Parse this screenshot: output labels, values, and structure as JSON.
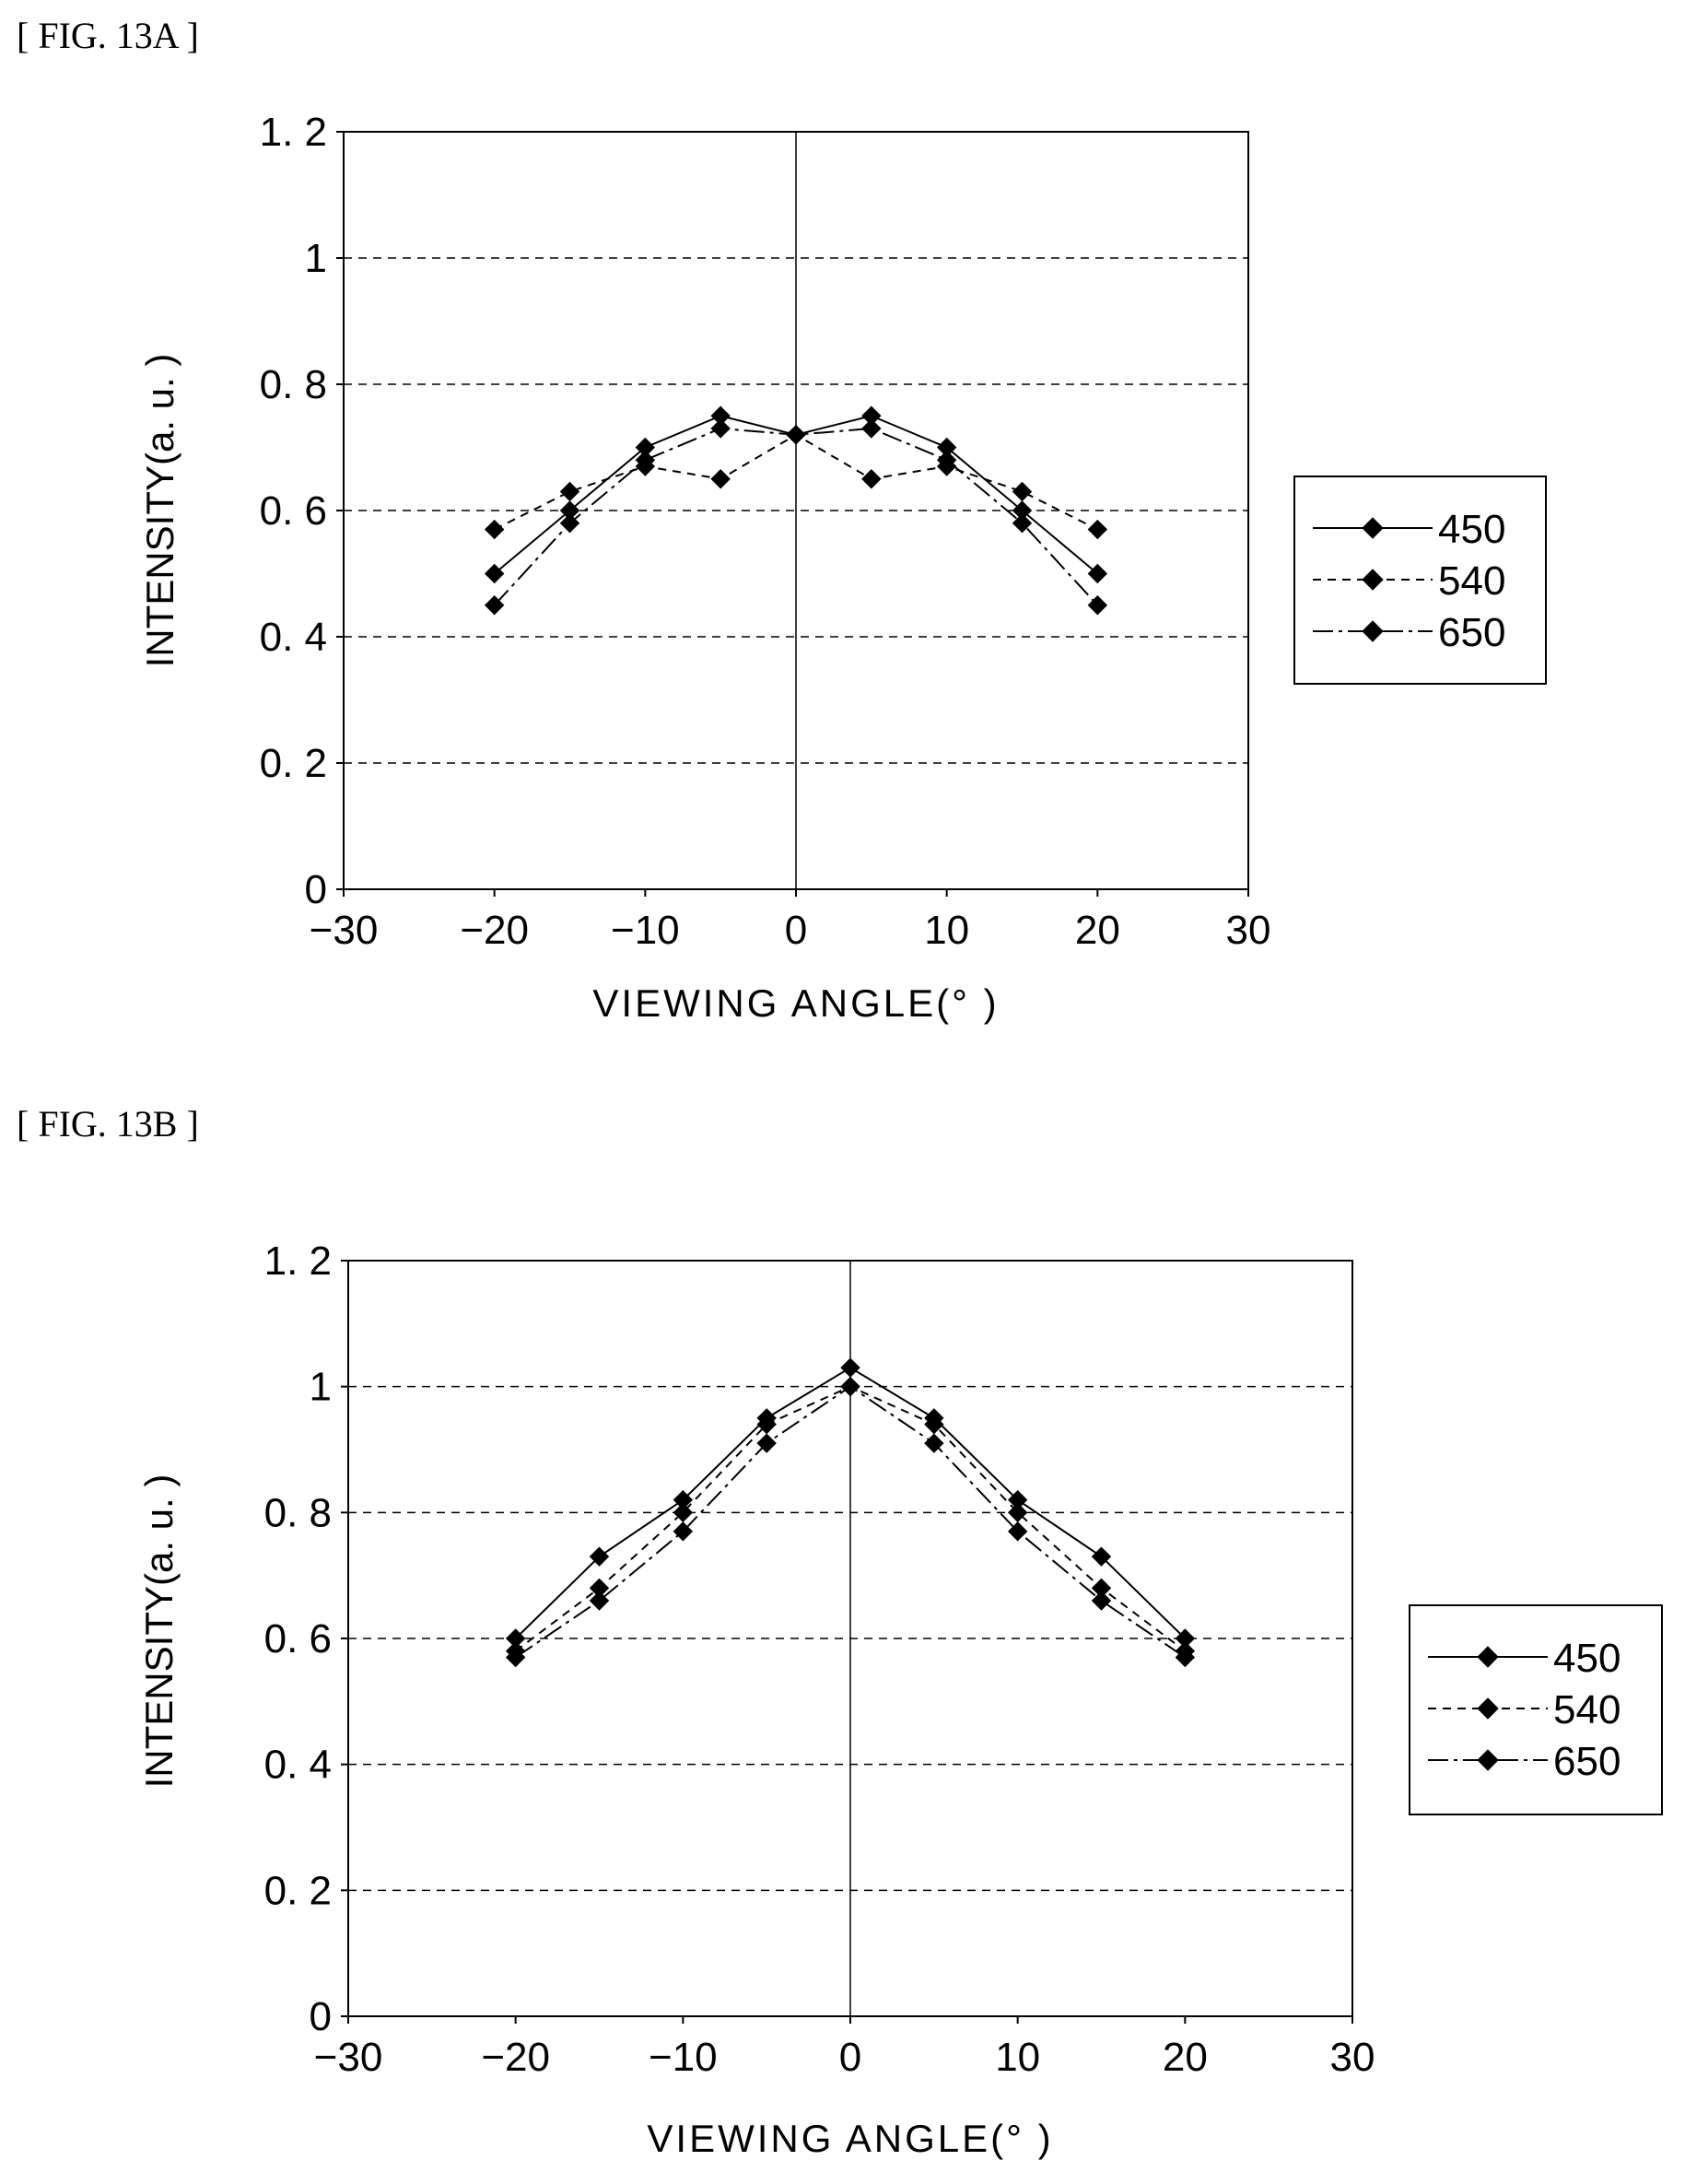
{
  "figures": [
    {
      "fig_label": "[ FIG. 13A ]",
      "chart_data": {
        "type": "line",
        "xlabel": "VIEWING ANGLE(° )",
        "ylabel": "INTENSITY(a. u. )",
        "xlim": [
          -30,
          30
        ],
        "ylim": [
          0,
          1.2
        ],
        "xticks": [
          "−30",
          "−20",
          "−10",
          "0",
          "10",
          "20",
          "30"
        ],
        "yticks": [
          "0",
          "0. 2",
          "0. 4",
          "0. 6",
          "0. 8",
          "1",
          "1. 2"
        ],
        "grid": "horizontal dashed",
        "legend_position": "right",
        "x": [
          -20,
          -15,
          -10,
          -5,
          0,
          5,
          10,
          15,
          20
        ],
        "series": [
          {
            "name": "450",
            "style": "solid",
            "values": [
              0.5,
              0.6,
              0.7,
              0.75,
              0.72,
              0.75,
              0.7,
              0.6,
              0.5
            ]
          },
          {
            "name": "540",
            "style": "dashed",
            "values": [
              0.57,
              0.63,
              0.67,
              0.65,
              0.72,
              0.65,
              0.67,
              0.63,
              0.57
            ]
          },
          {
            "name": "650",
            "style": "dashdot",
            "values": [
              0.45,
              0.58,
              0.68,
              0.73,
              0.72,
              0.73,
              0.68,
              0.58,
              0.45
            ]
          }
        ]
      }
    },
    {
      "fig_label": "[ FIG. 13B ]",
      "chart_data": {
        "type": "line",
        "xlabel": "VIEWING ANGLE(° )",
        "ylabel": "INTENSITY(a. u. )",
        "xlim": [
          -30,
          30
        ],
        "ylim": [
          0,
          1.2
        ],
        "xticks": [
          "−30",
          "−20",
          "−10",
          "0",
          "10",
          "20",
          "30"
        ],
        "yticks": [
          "0",
          "0. 2",
          "0. 4",
          "0. 6",
          "0. 8",
          "1",
          "1. 2"
        ],
        "grid": "horizontal dashed",
        "legend_position": "right",
        "x": [
          -20,
          -15,
          -10,
          -5,
          0,
          5,
          10,
          15,
          20
        ],
        "series": [
          {
            "name": "450",
            "style": "solid",
            "values": [
              0.6,
              0.73,
              0.82,
              0.95,
              1.03,
              0.95,
              0.82,
              0.73,
              0.6
            ]
          },
          {
            "name": "540",
            "style": "dashed",
            "values": [
              0.58,
              0.68,
              0.8,
              0.94,
              1.0,
              0.94,
              0.8,
              0.68,
              0.58
            ]
          },
          {
            "name": "650",
            "style": "dashdot",
            "values": [
              0.57,
              0.66,
              0.77,
              0.91,
              1.0,
              0.91,
              0.77,
              0.66,
              0.57
            ]
          }
        ]
      }
    }
  ]
}
